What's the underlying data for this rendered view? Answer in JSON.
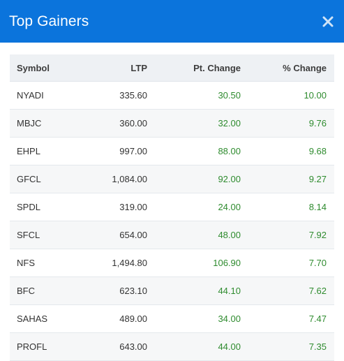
{
  "modal": {
    "title": "Top Gainers",
    "close_icon": "close-icon"
  },
  "colors": {
    "header_bg": "#0b74dc",
    "positive": "#2e8b2e"
  },
  "table": {
    "columns": [
      "Symbol",
      "LTP",
      "Pt. Change",
      "% Change"
    ],
    "rows": [
      {
        "symbol": "NYADI",
        "ltp": "335.60",
        "pt_change": "30.50",
        "pct_change": "10.00"
      },
      {
        "symbol": "MBJC",
        "ltp": "360.00",
        "pt_change": "32.00",
        "pct_change": "9.76"
      },
      {
        "symbol": "EHPL",
        "ltp": "997.00",
        "pt_change": "88.00",
        "pct_change": "9.68"
      },
      {
        "symbol": "GFCL",
        "ltp": "1,084.00",
        "pt_change": "92.00",
        "pct_change": "9.27"
      },
      {
        "symbol": "SPDL",
        "ltp": "319.00",
        "pt_change": "24.00",
        "pct_change": "8.14"
      },
      {
        "symbol": "SFCL",
        "ltp": "654.00",
        "pt_change": "48.00",
        "pct_change": "7.92"
      },
      {
        "symbol": "NFS",
        "ltp": "1,494.80",
        "pt_change": "106.90",
        "pct_change": "7.70"
      },
      {
        "symbol": "BFC",
        "ltp": "623.10",
        "pt_change": "44.10",
        "pct_change": "7.62"
      },
      {
        "symbol": "SAHAS",
        "ltp": "489.00",
        "pt_change": "34.00",
        "pct_change": "7.47"
      },
      {
        "symbol": "PROFL",
        "ltp": "643.00",
        "pt_change": "44.00",
        "pct_change": "7.35"
      }
    ]
  }
}
